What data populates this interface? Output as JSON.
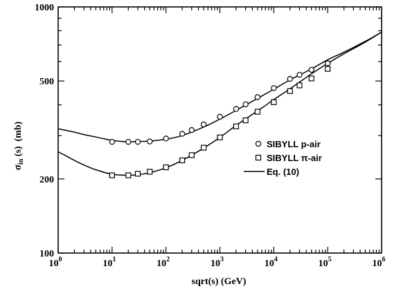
{
  "chart_data": {
    "type": "scatter",
    "title": "",
    "xlabel": "sqrt(s) (GeV)",
    "ylabel_main": "σ",
    "ylabel_sub": "in",
    "ylabel_rest": " (s)  (mb)",
    "x_scale": "log",
    "y_scale": "log",
    "xlim": [
      1,
      1000000
    ],
    "ylim": [
      100,
      1000
    ],
    "x_ticks": [
      {
        "value": 1,
        "base": "10",
        "exp": "0"
      },
      {
        "value": 10,
        "base": "10",
        "exp": "1"
      },
      {
        "value": 100,
        "base": "10",
        "exp": "2"
      },
      {
        "value": 1000,
        "base": "10",
        "exp": "3"
      },
      {
        "value": 10000,
        "base": "10",
        "exp": "4"
      },
      {
        "value": 100000,
        "base": "10",
        "exp": "5"
      },
      {
        "value": 1000000,
        "base": "10",
        "exp": "6"
      }
    ],
    "y_ticks": [
      {
        "value": 100,
        "label": "100"
      },
      {
        "value": 200,
        "label": "200"
      },
      {
        "value": 500,
        "label": "500"
      },
      {
        "value": 1000,
        "label": "1000"
      }
    ],
    "grid": false,
    "legend_position": "center-right",
    "legend": [
      {
        "label": "SIBYLL p-air",
        "marker": "circle"
      },
      {
        "label": "SIBYLL π-air",
        "marker": "square"
      },
      {
        "label": "Eq. (10)",
        "marker": "line"
      }
    ],
    "series": [
      {
        "name": "SIBYLL p-air",
        "marker": "circle",
        "x": [
          10,
          20,
          30,
          50,
          100,
          200,
          300,
          500,
          1000,
          2000,
          3000,
          5000,
          10000,
          20000,
          30000,
          50000,
          100000
        ],
        "y": [
          283,
          283,
          283,
          284,
          292,
          305,
          316,
          333,
          358,
          385,
          402,
          430,
          468,
          510,
          530,
          555,
          590
        ]
      },
      {
        "name": "SIBYLL π-air",
        "marker": "square",
        "x": [
          10,
          20,
          30,
          50,
          100,
          200,
          300,
          500,
          1000,
          2000,
          3000,
          5000,
          10000,
          20000,
          30000,
          50000,
          100000
        ],
        "y": [
          207,
          207,
          210,
          214,
          223,
          238,
          250,
          268,
          295,
          327,
          346,
          375,
          410,
          455,
          480,
          512,
          560
        ]
      },
      {
        "name": "Eq. (10)",
        "marker": "line",
        "curves": [
          {
            "x": [
              1,
              2,
              3,
              5,
              10,
              20,
              30,
              50,
              100,
              200,
              500,
              1000,
              2000,
              5000,
              10000,
              20000,
              50000,
              100000,
              200000,
              500000,
              1000000
            ],
            "y": [
              320,
              310,
              303,
              296,
              287,
              283,
              284,
              285,
              290,
              300,
              325,
              350,
              380,
              425,
              463,
              505,
              560,
              610,
              655,
              725,
              790
            ]
          },
          {
            "x": [
              1,
              2,
              3,
              5,
              10,
              20,
              30,
              50,
              100,
              200,
              500,
              1000,
              2000,
              5000,
              10000,
              20000,
              50000,
              100000,
              200000,
              500000,
              1000000
            ],
            "y": [
              258,
              238,
              228,
              218,
              209,
              207,
              208,
              212,
              222,
              238,
              267,
              295,
              330,
              378,
              420,
              465,
              535,
              590,
              645,
              720,
              790
            ]
          }
        ]
      }
    ]
  }
}
